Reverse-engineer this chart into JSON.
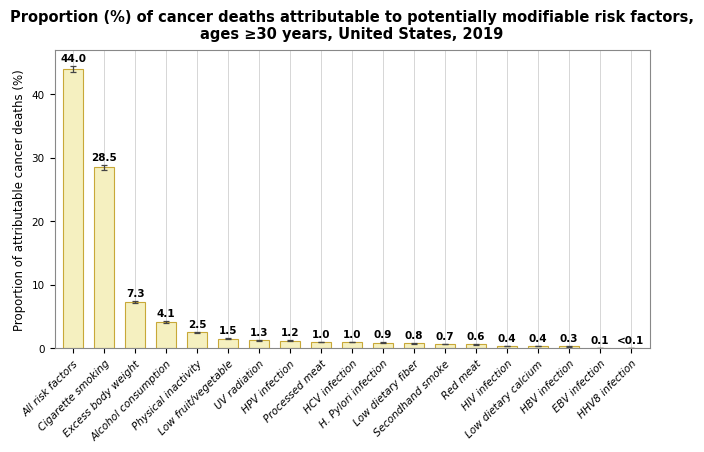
{
  "title": "Proportion (%) of cancer deaths attributable to potentially modifiable risk factors,\nages ≥30 years, United States, 2019",
  "ylabel": "Proportion of attributable cancer deaths (%)",
  "categories": [
    "All risk factors",
    "Cigarette smoking",
    "Excess body weight",
    "Alcohol consumption",
    "Physical inactivity",
    "Low fruit/vegetable",
    "UV radiation",
    "HPV infection",
    "Processed meat",
    "HCV infection",
    "H. Pylori infection",
    "Low dietary fiber",
    "Secondhand smoke",
    "Red meat",
    "HIV infection",
    "Low dietary calcium",
    "HBV infection",
    "EBV infection",
    "HHV8 infection"
  ],
  "values": [
    44.0,
    28.5,
    7.3,
    4.1,
    2.5,
    1.5,
    1.3,
    1.2,
    1.0,
    1.0,
    0.9,
    0.8,
    0.7,
    0.6,
    0.4,
    0.4,
    0.3,
    0.1,
    0.05
  ],
  "labels": [
    "44.0",
    "28.5",
    "7.3",
    "4.1",
    "2.5",
    "1.5",
    "1.3",
    "1.2",
    "1.0",
    "1.0",
    "0.9",
    "0.8",
    "0.7",
    "0.6",
    "0.4",
    "0.4",
    "0.3",
    "0.1",
    "<0.1"
  ],
  "errors": [
    0.5,
    0.4,
    0.2,
    0.15,
    0.12,
    0.09,
    0.08,
    0.08,
    0.07,
    0.07,
    0.06,
    0.06,
    0.05,
    0.05,
    0.04,
    0.04,
    0.03,
    0.02,
    0.01
  ],
  "bar_color": "#f5f0c0",
  "bar_edge_color": "#c8a838",
  "error_color": "#444444",
  "background_color": "#ffffff",
  "grid_color": "#d0d0d0",
  "title_fontsize": 10.5,
  "label_fontsize": 7.5,
  "tick_fontsize": 7.5,
  "ylabel_fontsize": 8.5,
  "ylim": [
    0,
    47
  ]
}
